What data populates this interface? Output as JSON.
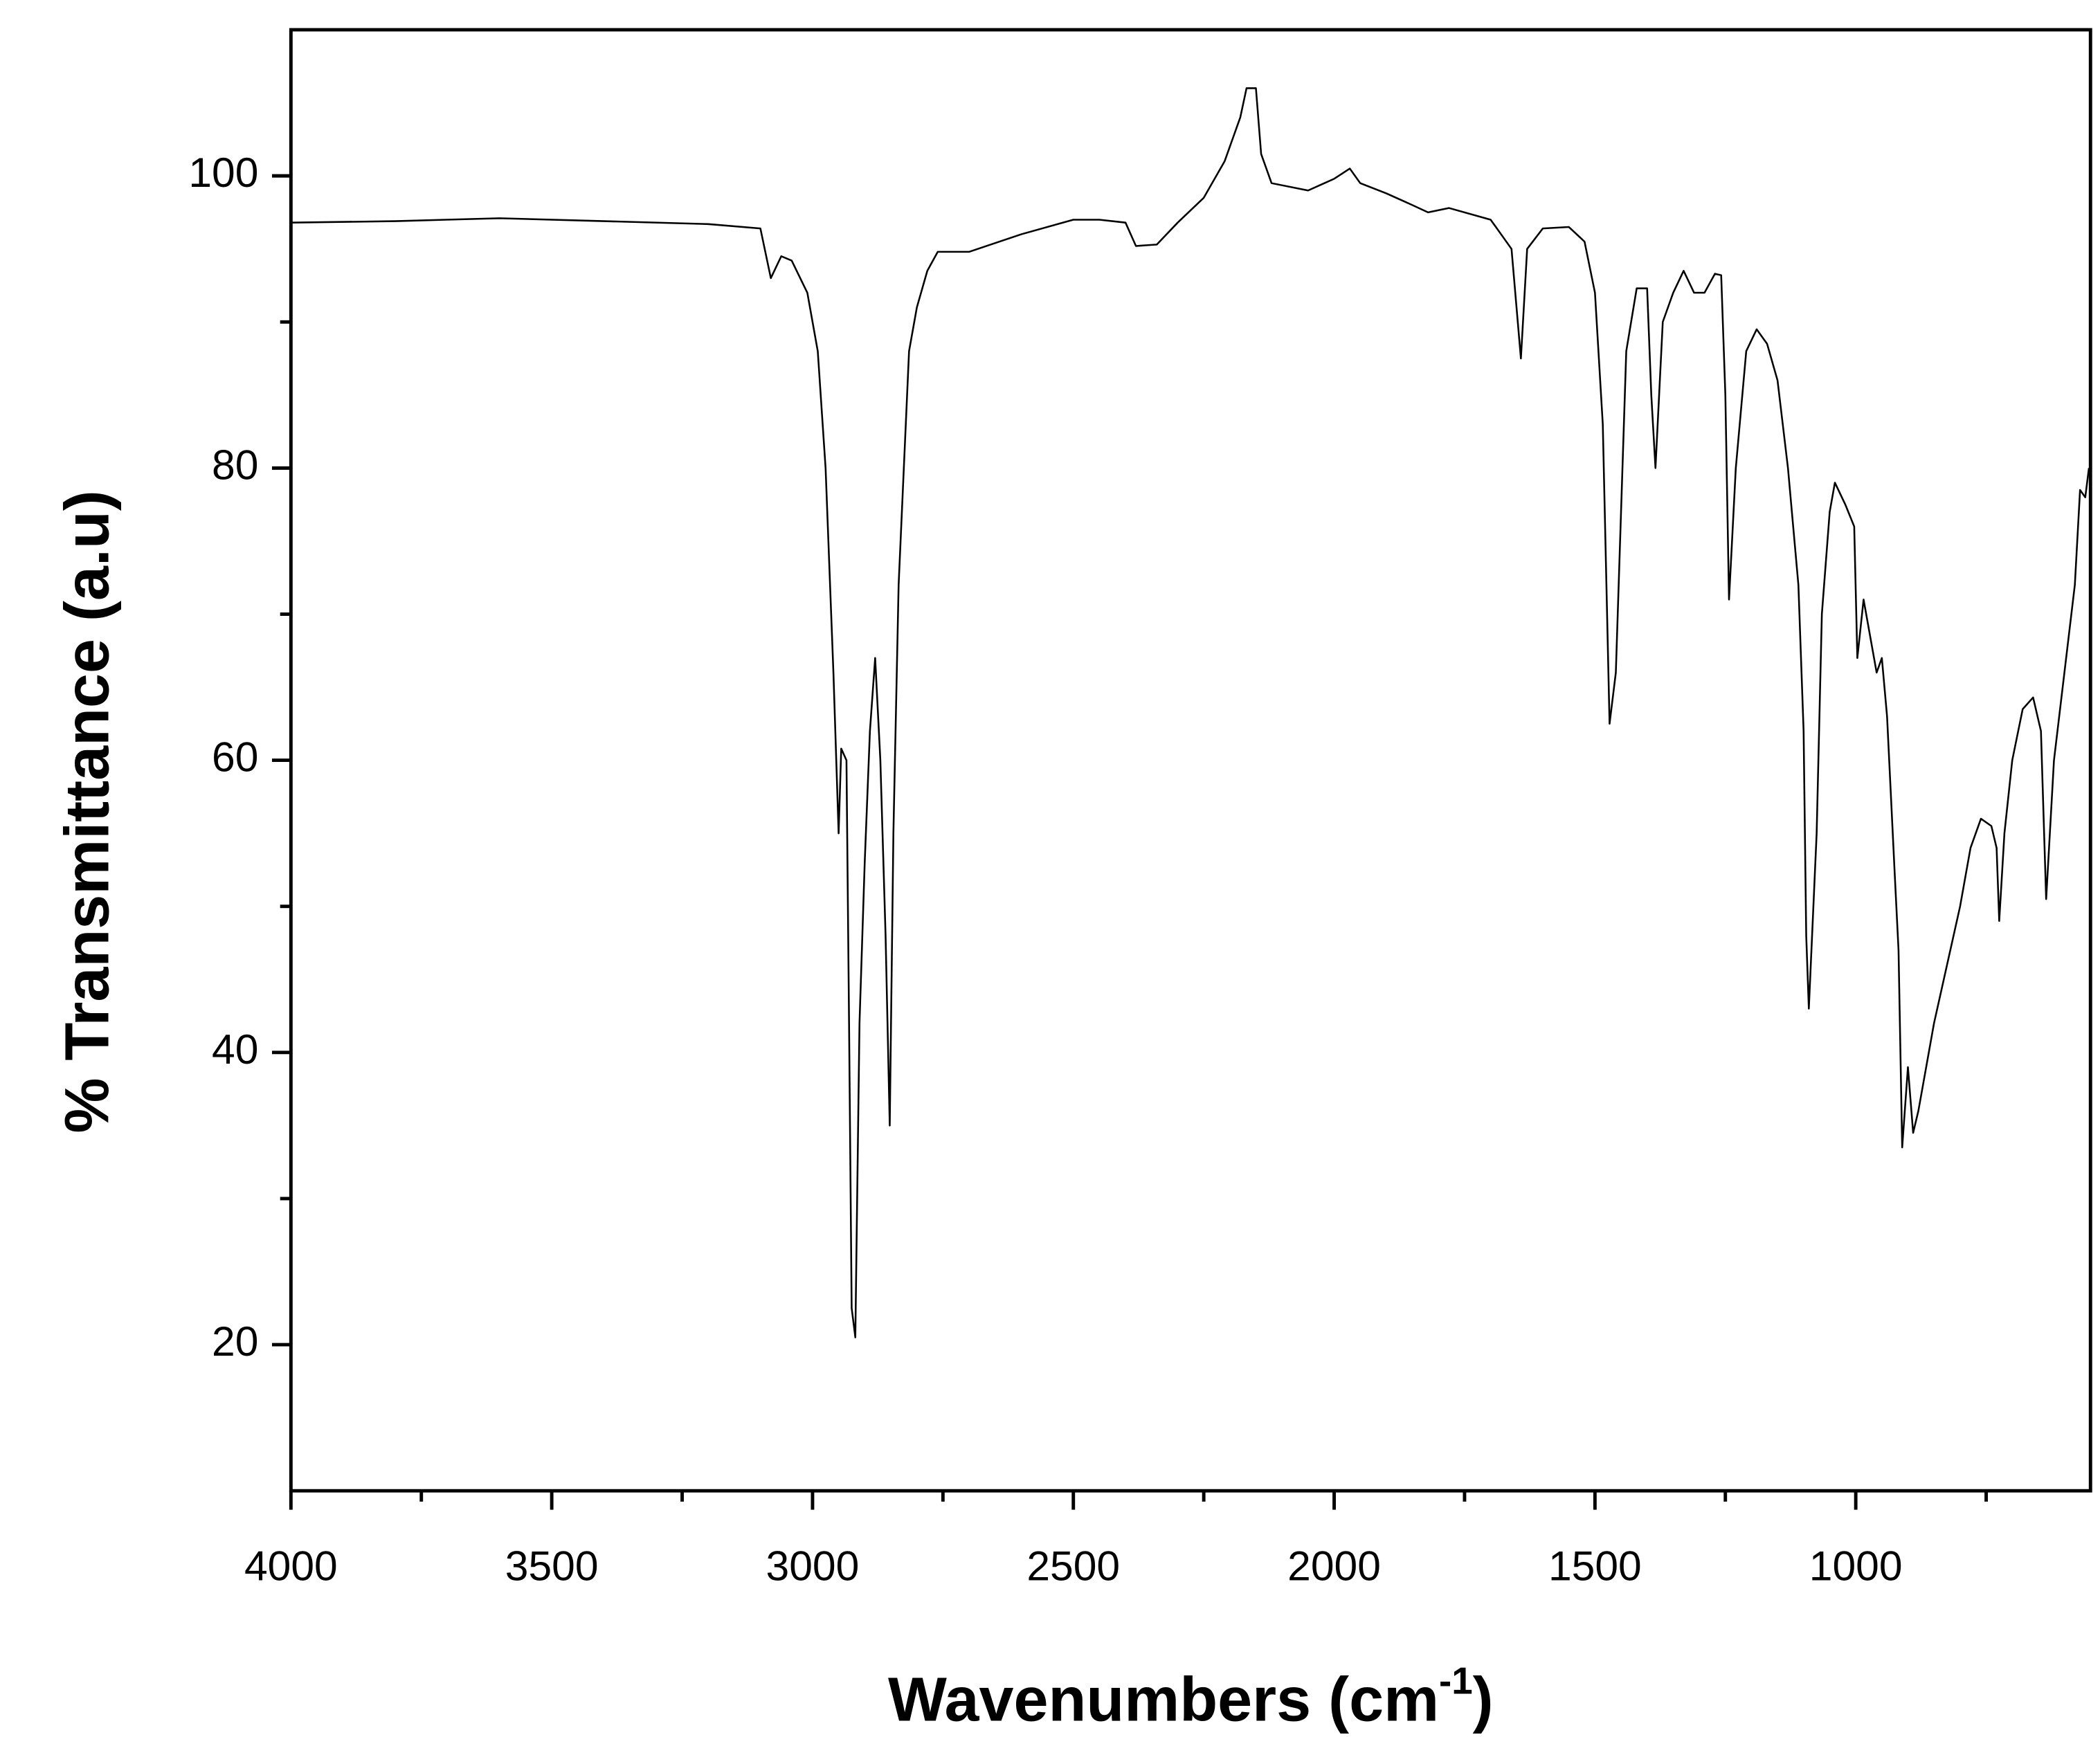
{
  "chart_data": {
    "type": "line",
    "x_label": [
      "Wavenumbers (cm",
      "-1",
      ")"
    ],
    "y_label": "% Transmittance (a.u)",
    "color": "#000000",
    "xlim": [
      4000,
      550
    ],
    "ylim": [
      10,
      110
    ],
    "xticks": [
      4000,
      3500,
      3000,
      2500,
      2000,
      1500,
      1000
    ],
    "xminorticks": [
      3750,
      3250,
      2750,
      2250,
      1750,
      1250,
      750
    ],
    "yticks": [
      20,
      40,
      60,
      80,
      100
    ],
    "yminorticks": [
      30,
      50,
      70,
      90
    ],
    "x": [
      4000,
      3800,
      3600,
      3400,
      3200,
      3100,
      3080,
      3060,
      3040,
      3010,
      2990,
      2975,
      2960,
      2950,
      2945,
      2935,
      2930,
      2925,
      2918,
      2910,
      2900,
      2890,
      2880,
      2870,
      2860,
      2852,
      2845,
      2835,
      2825,
      2815,
      2800,
      2780,
      2760,
      2700,
      2600,
      2500,
      2450,
      2400,
      2380,
      2340,
      2300,
      2250,
      2210,
      2180,
      2168,
      2150,
      2140,
      2120,
      2050,
      2000,
      1970,
      1950,
      1900,
      1850,
      1820,
      1780,
      1700,
      1660,
      1642,
      1630,
      1600,
      1550,
      1520,
      1500,
      1485,
      1472,
      1460,
      1450,
      1440,
      1420,
      1400,
      1392,
      1384,
      1370,
      1350,
      1330,
      1310,
      1290,
      1270,
      1258,
      1250,
      1243,
      1230,
      1210,
      1190,
      1170,
      1150,
      1130,
      1110,
      1100,
      1095,
      1090,
      1075,
      1065,
      1050,
      1040,
      1020,
      1003,
      997,
      985,
      970,
      960,
      950,
      940,
      925,
      918,
      911,
      900,
      890,
      880,
      850,
      800,
      780,
      760,
      740,
      730,
      725,
      715,
      700,
      680,
      660,
      645,
      635,
      620,
      600,
      580,
      570,
      560,
      553
    ],
    "values": [
      96.8,
      96.9,
      97.1,
      96.9,
      96.7,
      96.4,
      93,
      94.5,
      94.2,
      92,
      88,
      80,
      66,
      55,
      60.8,
      60,
      42,
      22.5,
      20.5,
      42,
      53,
      62,
      67,
      60,
      48,
      35,
      55,
      72,
      80,
      88,
      91,
      93.5,
      94.8,
      94.8,
      96,
      97,
      97,
      96.8,
      95.2,
      95.3,
      96.8,
      98.5,
      101,
      104,
      106,
      106,
      101.5,
      99.5,
      99,
      99.8,
      100.5,
      99.5,
      98.8,
      98,
      97.5,
      97.8,
      97,
      95,
      87.5,
      95,
      96.4,
      96.5,
      95.5,
      92,
      83,
      62.5,
      66,
      77,
      88,
      92.3,
      92.3,
      85,
      80,
      90,
      92,
      93.5,
      92,
      92,
      93.3,
      93.2,
      85,
      71,
      80,
      88,
      89.5,
      88.5,
      86,
      80,
      72,
      62,
      48,
      43,
      55,
      70,
      77,
      79,
      77.5,
      76,
      67,
      71,
      68,
      66,
      67,
      63,
      52,
      47,
      33.5,
      39,
      34.5,
      36,
      42,
      50,
      54,
      56,
      55.5,
      54,
      49,
      55,
      60,
      63.5,
      64.3,
      62,
      50.5,
      60,
      66,
      72,
      78.5,
      78,
      80
    ]
  }
}
